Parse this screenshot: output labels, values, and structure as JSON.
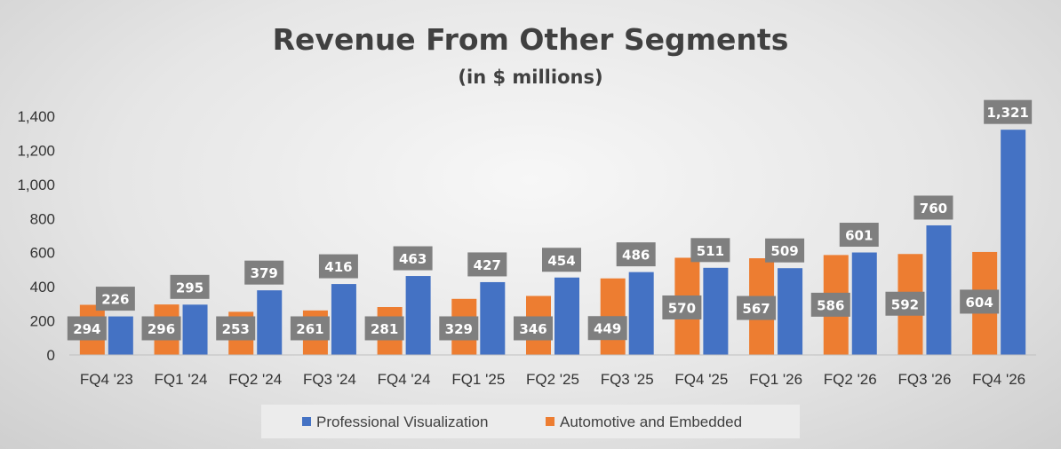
{
  "chart_data": {
    "type": "bar",
    "title": "Revenue From Other Segments",
    "subtitle": "(in $ millions)",
    "xlabel": "",
    "ylabel": "",
    "ylim": [
      0,
      1400
    ],
    "yticks": [
      0,
      200,
      400,
      600,
      800,
      1000,
      1200,
      1400
    ],
    "ytick_labels": [
      "0",
      "200",
      "400",
      "600",
      "800",
      "1,000",
      "1,200",
      "1,400"
    ],
    "grid": false,
    "legend_position": "bottom",
    "categories": [
      "FQ4 '23",
      "FQ1 '24",
      "FQ2 '24",
      "FQ3 '24",
      "FQ4 '24",
      "FQ1 '25",
      "FQ2 '25",
      "FQ3 '25",
      "FQ4 '25",
      "FQ1 '26",
      "FQ2 '26",
      "FQ3 '26",
      "FQ4 '26"
    ],
    "series": [
      {
        "name": "Automotive and Embedded",
        "color": "#ED7D31",
        "values": [
          294,
          296,
          253,
          261,
          281,
          329,
          346,
          449,
          570,
          567,
          586,
          592,
          604
        ],
        "labels": [
          "294",
          "296",
          "253",
          "261",
          "281",
          "329",
          "346",
          "449",
          "570",
          "567",
          "586",
          "592",
          "604"
        ]
      },
      {
        "name": "Professional Visualization",
        "color": "#4472C4",
        "values": [
          226,
          295,
          379,
          416,
          463,
          427,
          454,
          486,
          511,
          509,
          601,
          760,
          1321
        ],
        "labels": [
          "226",
          "295",
          "379",
          "416",
          "463",
          "427",
          "454",
          "486",
          "511",
          "509",
          "601",
          "760",
          "1,321"
        ]
      }
    ],
    "legend_order": [
      "Professional Visualization",
      "Automotive and Embedded"
    ],
    "label_box_color": "#7F7F7F"
  }
}
